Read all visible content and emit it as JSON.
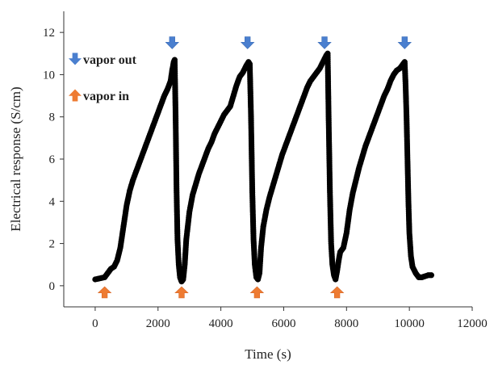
{
  "chart_data": {
    "type": "scatter",
    "title": "",
    "xlabel": "Time (s)",
    "ylabel": "Electrical response (S/cm)",
    "xlim": [
      -1000,
      12000
    ],
    "ylim": [
      -1,
      13
    ],
    "xticks": [
      0,
      2000,
      4000,
      6000,
      8000,
      10000,
      12000
    ],
    "yticks": [
      0,
      2,
      4,
      6,
      8,
      10,
      12
    ],
    "grid": false,
    "legend_position": "top-left",
    "legend": [
      {
        "label": "vapor out",
        "marker": "down-arrow",
        "color": "#4a7fcf"
      },
      {
        "label": "vapor in",
        "marker": "up-arrow",
        "color": "#ee7b32"
      }
    ],
    "series": [
      {
        "color": "#000000",
        "points": [
          [
            0,
            0.3
          ],
          [
            150,
            0.35
          ],
          [
            300,
            0.4
          ],
          [
            400,
            0.6
          ],
          [
            500,
            0.8
          ],
          [
            600,
            0.9
          ],
          [
            700,
            1.2
          ],
          [
            800,
            1.8
          ],
          [
            900,
            2.8
          ],
          [
            1000,
            3.8
          ],
          [
            1100,
            4.5
          ],
          [
            1200,
            5.0
          ],
          [
            1300,
            5.4
          ],
          [
            1400,
            5.8
          ],
          [
            1500,
            6.2
          ],
          [
            1600,
            6.6
          ],
          [
            1700,
            7.0
          ],
          [
            1800,
            7.4
          ],
          [
            1900,
            7.8
          ],
          [
            2000,
            8.2
          ],
          [
            2100,
            8.6
          ],
          [
            2200,
            9.0
          ],
          [
            2300,
            9.3
          ],
          [
            2400,
            9.7
          ],
          [
            2450,
            10.2
          ],
          [
            2500,
            10.6
          ],
          [
            2530,
            10.7
          ],
          [
            2560,
            8.0
          ],
          [
            2590,
            4.5
          ],
          [
            2620,
            2.2
          ],
          [
            2660,
            1.0
          ],
          [
            2700,
            0.4
          ],
          [
            2750,
            0.2
          ],
          [
            2800,
            0.3
          ],
          [
            2850,
            1.0
          ],
          [
            2900,
            2.2
          ],
          [
            3000,
            3.5
          ],
          [
            3100,
            4.3
          ],
          [
            3200,
            4.8
          ],
          [
            3300,
            5.3
          ],
          [
            3400,
            5.7
          ],
          [
            3500,
            6.1
          ],
          [
            3600,
            6.5
          ],
          [
            3700,
            6.8
          ],
          [
            3800,
            7.2
          ],
          [
            3900,
            7.5
          ],
          [
            4000,
            7.8
          ],
          [
            4100,
            8.1
          ],
          [
            4200,
            8.3
          ],
          [
            4300,
            8.5
          ],
          [
            4400,
            9.0
          ],
          [
            4500,
            9.5
          ],
          [
            4600,
            9.9
          ],
          [
            4700,
            10.1
          ],
          [
            4800,
            10.4
          ],
          [
            4880,
            10.6
          ],
          [
            4920,
            10.5
          ],
          [
            4960,
            8.0
          ],
          [
            5000,
            4.5
          ],
          [
            5040,
            2.2
          ],
          [
            5080,
            1.0
          ],
          [
            5130,
            0.4
          ],
          [
            5180,
            0.3
          ],
          [
            5230,
            0.6
          ],
          [
            5280,
            1.8
          ],
          [
            5350,
            2.8
          ],
          [
            5450,
            3.6
          ],
          [
            5550,
            4.2
          ],
          [
            5650,
            4.7
          ],
          [
            5750,
            5.2
          ],
          [
            5850,
            5.7
          ],
          [
            5950,
            6.2
          ],
          [
            6050,
            6.6
          ],
          [
            6150,
            7.0
          ],
          [
            6250,
            7.4
          ],
          [
            6350,
            7.8
          ],
          [
            6450,
            8.2
          ],
          [
            6550,
            8.6
          ],
          [
            6650,
            9.0
          ],
          [
            6750,
            9.4
          ],
          [
            6850,
            9.7
          ],
          [
            6950,
            9.9
          ],
          [
            7050,
            10.1
          ],
          [
            7150,
            10.3
          ],
          [
            7250,
            10.6
          ],
          [
            7350,
            10.9
          ],
          [
            7400,
            11.0
          ],
          [
            7430,
            8.0
          ],
          [
            7470,
            4.5
          ],
          [
            7510,
            2.0
          ],
          [
            7550,
            1.0
          ],
          [
            7600,
            0.5
          ],
          [
            7650,
            0.3
          ],
          [
            7700,
            0.7
          ],
          [
            7750,
            1.2
          ],
          [
            7800,
            1.6
          ],
          [
            7900,
            1.8
          ],
          [
            8000,
            2.5
          ],
          [
            8100,
            3.6
          ],
          [
            8200,
            4.4
          ],
          [
            8300,
            5.0
          ],
          [
            8400,
            5.6
          ],
          [
            8500,
            6.1
          ],
          [
            8600,
            6.6
          ],
          [
            8700,
            7.0
          ],
          [
            8800,
            7.4
          ],
          [
            8900,
            7.8
          ],
          [
            9000,
            8.2
          ],
          [
            9100,
            8.6
          ],
          [
            9200,
            9.0
          ],
          [
            9300,
            9.3
          ],
          [
            9400,
            9.7
          ],
          [
            9500,
            10.0
          ],
          [
            9600,
            10.2
          ],
          [
            9700,
            10.3
          ],
          [
            9800,
            10.5
          ],
          [
            9850,
            10.6
          ],
          [
            9880,
            9.5
          ],
          [
            9910,
            8.0
          ],
          [
            9940,
            6.0
          ],
          [
            9970,
            4.0
          ],
          [
            10000,
            2.5
          ],
          [
            10050,
            1.4
          ],
          [
            10100,
            0.9
          ],
          [
            10200,
            0.6
          ],
          [
            10300,
            0.4
          ],
          [
            10400,
            0.4
          ],
          [
            10500,
            0.45
          ],
          [
            10600,
            0.5
          ],
          [
            10700,
            0.5
          ]
        ]
      }
    ],
    "annotations": {
      "vapor_out_times": [
        2450,
        4850,
        7300,
        9850
      ],
      "vapor_in_times": [
        300,
        2750,
        5150,
        7700
      ]
    }
  }
}
